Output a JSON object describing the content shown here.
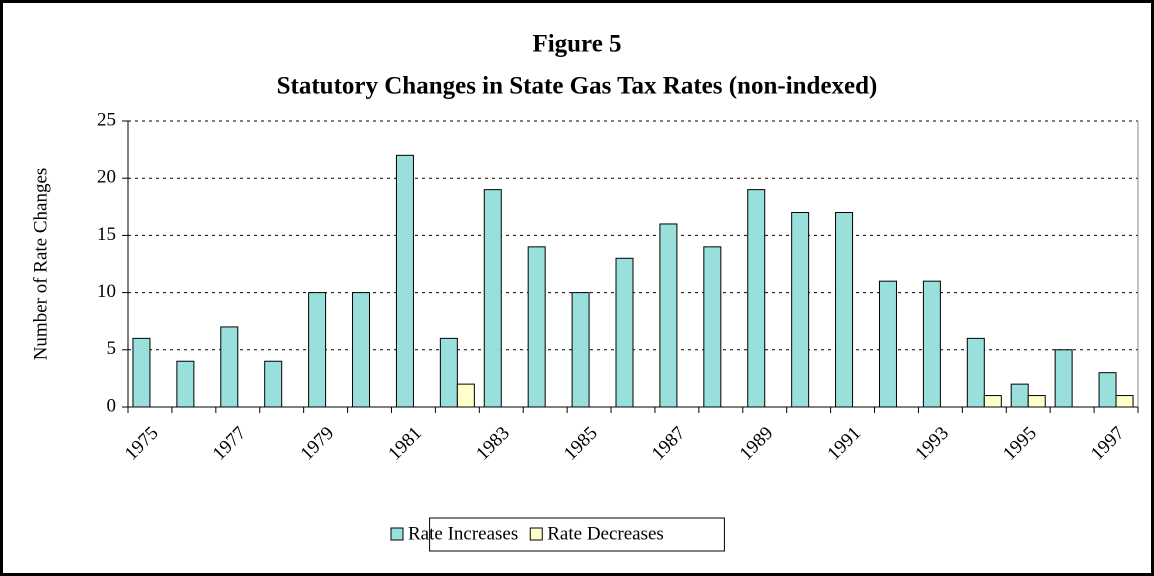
{
  "chart_data": {
    "type": "bar",
    "title": "Figure 5",
    "subtitle": "Statutory Changes in State Gas Tax Rates (non-indexed)",
    "y_label": "Number of Rate Changes",
    "categories": [
      "1975",
      null,
      "1977",
      null,
      "1979",
      null,
      "1981",
      null,
      "1983",
      null,
      "1985",
      null,
      "1987",
      null,
      "1989",
      null,
      "1991",
      null,
      "1993",
      null,
      "1995",
      null,
      "1997"
    ],
    "series": [
      {
        "name": "Rate Increases",
        "color": "#99e0dc",
        "values": [
          6,
          4,
          7,
          4,
          10,
          10,
          22,
          6,
          19,
          14,
          10,
          13,
          16,
          14,
          19,
          17,
          17,
          11,
          11,
          6,
          2,
          5,
          3
        ]
      },
      {
        "name": "Rate Decreases",
        "color": "#ffffcc",
        "values": [
          0,
          0,
          0,
          0,
          0,
          0,
          0,
          2,
          0,
          0,
          0,
          0,
          0,
          0,
          0,
          0,
          0,
          0,
          0,
          1,
          1,
          0,
          1
        ]
      }
    ],
    "ylim": [
      0,
      25
    ],
    "yticks": [
      0,
      5,
      10,
      15,
      20,
      25
    ],
    "grid": true,
    "legend": "bottom"
  }
}
